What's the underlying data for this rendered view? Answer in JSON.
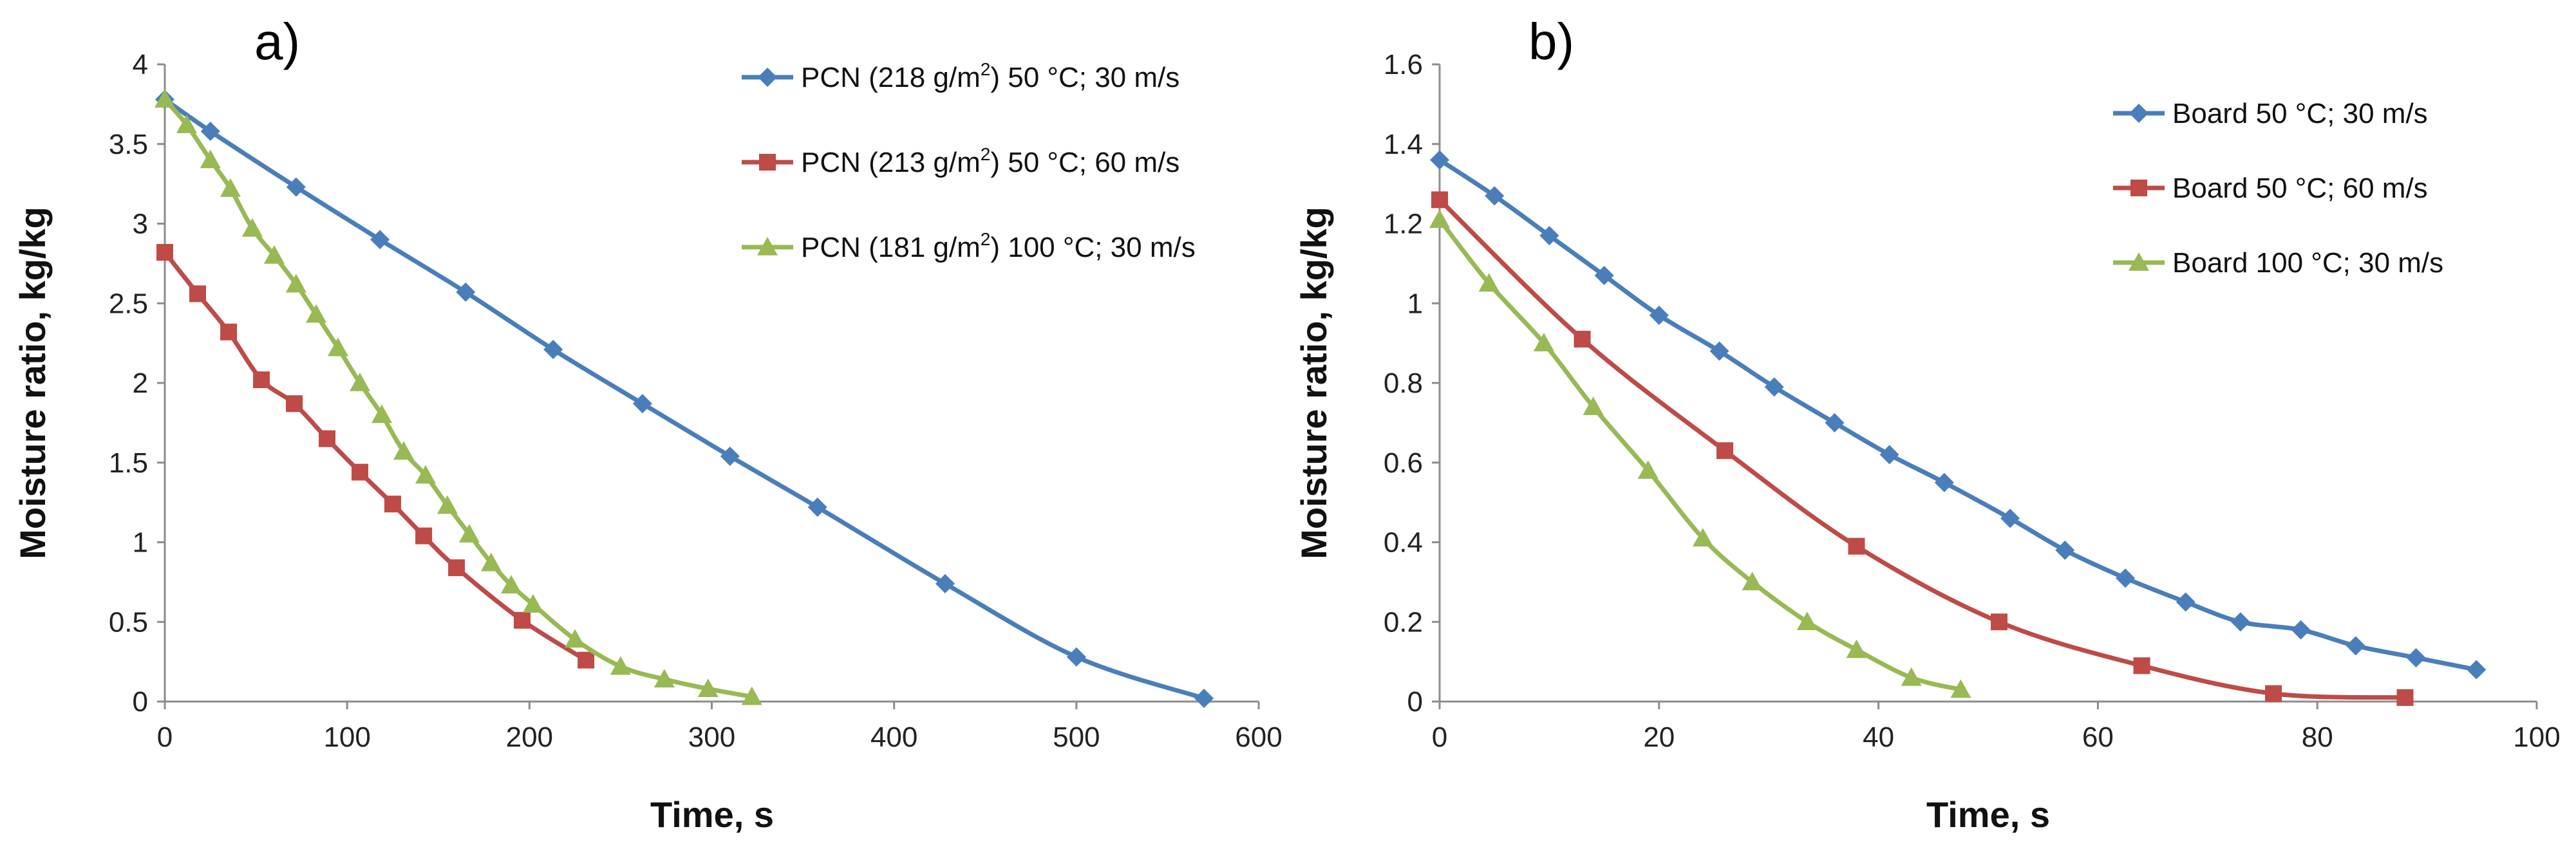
{
  "chart_data": [
    {
      "panel": "a)",
      "type": "line",
      "xlabel": "Time, s",
      "ylabel": "Moisture ratio, kg/kg",
      "xlim": [
        0,
        600
      ],
      "ylim": [
        0,
        4
      ],
      "xticks": [
        "0",
        "100",
        "200",
        "300",
        "400",
        "500",
        "600"
      ],
      "yticks": [
        "0",
        "0.5",
        "1",
        "1.5",
        "2",
        "2.5",
        "3",
        "3.5",
        "4"
      ],
      "grid": false,
      "legend_position": "top-right",
      "series": [
        {
          "name_main": "PCN (218 g/m",
          "name_sup": "2",
          "name_rest": ") 50 °C; 30 m/s",
          "color": "#4a7ebb",
          "marker": "diamond",
          "x": [
            0,
            25,
            72,
            118,
            165,
            213,
            262,
            310,
            358,
            428,
            500,
            570
          ],
          "y": [
            3.78,
            3.58,
            3.23,
            2.9,
            2.57,
            2.21,
            1.87,
            1.54,
            1.22,
            0.74,
            0.28,
            0.02
          ]
        },
        {
          "name_main": "PCN (213 g/m",
          "name_sup": "2",
          "name_rest": ") 50 °C; 60 m/s",
          "color": "#be4b48",
          "marker": "square",
          "x": [
            0,
            18,
            35,
            53,
            71,
            89,
            107,
            125,
            142,
            160,
            196,
            231
          ],
          "y": [
            2.82,
            2.56,
            2.32,
            2.02,
            1.87,
            1.65,
            1.44,
            1.24,
            1.04,
            0.84,
            0.51,
            0.26
          ]
        },
        {
          "name_main": "PCN (181 g/m",
          "name_sup": "2",
          "name_rest": ") 100 °C; 30 m/s",
          "color": "#98b954",
          "marker": "triangle",
          "x": [
            0,
            12,
            25,
            36,
            48,
            60,
            72,
            83,
            95,
            107,
            119,
            131,
            143,
            155,
            167,
            179,
            190,
            202,
            225,
            250,
            274,
            298,
            322
          ],
          "y": [
            3.78,
            3.62,
            3.4,
            3.22,
            2.97,
            2.8,
            2.62,
            2.43,
            2.22,
            2.0,
            1.8,
            1.57,
            1.42,
            1.23,
            1.05,
            0.87,
            0.73,
            0.61,
            0.39,
            0.22,
            0.14,
            0.08,
            0.03
          ]
        }
      ]
    },
    {
      "panel": "b)",
      "type": "line",
      "xlabel": "Time, s",
      "ylabel": "Moisture ratio, kg/kg",
      "xlim": [
        0,
        100
      ],
      "ylim": [
        0,
        1.6
      ],
      "xticks": [
        "0",
        "20",
        "40",
        "60",
        "80",
        "100"
      ],
      "yticks": [
        "0",
        "0.2",
        "0.4",
        "0.6",
        "0.8",
        "1",
        "1.2",
        "1.4",
        "1.6"
      ],
      "grid": false,
      "legend_position": "top-right",
      "series": [
        {
          "name_main": "Board 50 °C; 30 m/s",
          "name_sup": "",
          "name_rest": "",
          "color": "#4a7ebb",
          "marker": "diamond",
          "x": [
            0,
            5,
            10,
            15,
            20,
            25.5,
            30.5,
            36,
            41,
            46,
            52,
            57,
            62.5,
            68,
            73,
            78.5,
            83.5,
            89,
            94.5
          ],
          "y": [
            1.36,
            1.27,
            1.17,
            1.07,
            0.97,
            0.88,
            0.79,
            0.7,
            0.62,
            0.55,
            0.46,
            0.38,
            0.31,
            0.25,
            0.2,
            0.18,
            0.14,
            0.11,
            0.08
          ]
        },
        {
          "name_main": "Board 50 °C; 60 m/s",
          "name_sup": "",
          "name_rest": "",
          "color": "#be4b48",
          "marker": "square",
          "x": [
            0,
            13,
            26,
            38,
            51,
            64,
            76,
            88
          ],
          "y": [
            1.26,
            0.91,
            0.63,
            0.39,
            0.2,
            0.09,
            0.02,
            0.01
          ]
        },
        {
          "name_main": "Board 100 °C; 30 m/s",
          "name_sup": "",
          "name_rest": "",
          "color": "#98b954",
          "marker": "triangle",
          "x": [
            0,
            4.5,
            9.5,
            14,
            19,
            24,
            28.5,
            33.5,
            38,
            43,
            47.5
          ],
          "y": [
            1.21,
            1.05,
            0.9,
            0.74,
            0.58,
            0.41,
            0.3,
            0.2,
            0.13,
            0.06,
            0.03
          ]
        }
      ]
    }
  ]
}
